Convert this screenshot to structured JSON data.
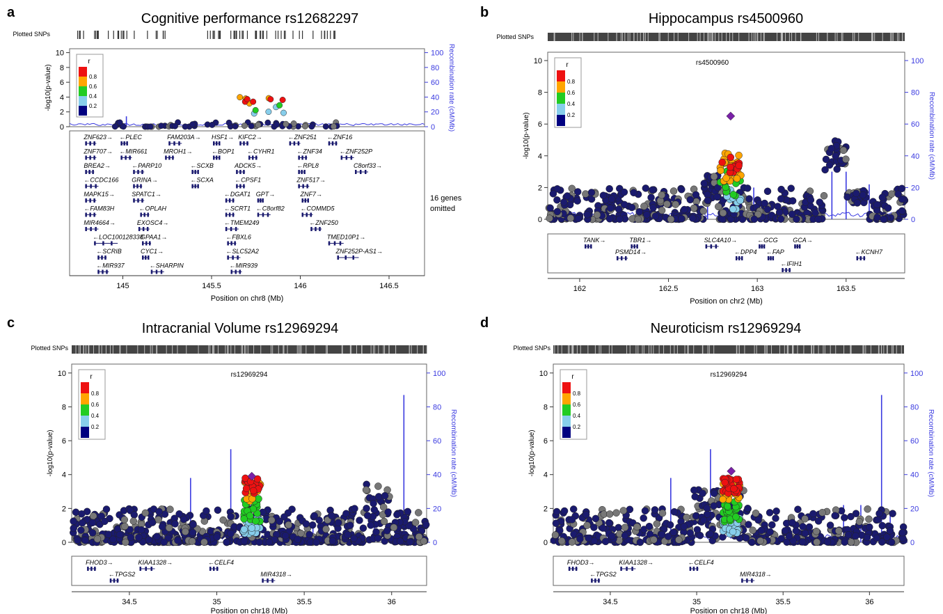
{
  "colors": {
    "recomb": "#3a3ae0",
    "snp_default": "#1a1a6e",
    "snp_gray": "#777777",
    "r2_bins": [
      "#000080",
      "#87ceeb",
      "#22cc22",
      "#ffa500",
      "#ee1111"
    ],
    "lead": "#7a20a8",
    "gene": "#1a1a6e"
  },
  "panels": [
    {
      "letter": "a",
      "title": "Cognitive performance rs12682297",
      "plotted_snps_label": "Plotted SNPs",
      "chart_data": {
        "type": "scatter",
        "title": "Cognitive performance rs12682297",
        "xlabel": "Position on chr8 (Mb)",
        "ylabel": "-log10(p-value)",
        "ylabel_right": "Recombination rate (cM/Mb)",
        "xlim": [
          144.7,
          146.7
        ],
        "ylim": [
          0,
          10
        ],
        "y2lim": [
          0,
          100
        ],
        "xticks": [
          145,
          145.5,
          146,
          146.5
        ],
        "xtick_labels": [
          "145",
          "145.5",
          "146",
          "146.5"
        ],
        "yticks": [
          0,
          2,
          4,
          6,
          8,
          10
        ],
        "y2ticks": [
          0,
          20,
          40,
          60,
          80,
          100
        ],
        "legend": {
          "title": "r",
          "labels": [
            "0.8",
            "0.6",
            "0.4",
            "0.2"
          ]
        },
        "lead_snp_label": "",
        "snp_bin_counts": [
          60,
          4,
          2,
          4,
          5
        ],
        "snp_x_range": [
          144.95,
          146.3
        ],
        "recomb_peaks": [
          [
            145.02,
            14
          ],
          [
            145.48,
            6
          ],
          [
            145.95,
            4
          ],
          [
            146.08,
            3
          ]
        ],
        "genes": [
          {
            "name": "ZNF623",
            "x": 144.78,
            "row": 0,
            "dir": "+"
          },
          {
            "name": "PLEC",
            "x": 144.98,
            "row": 0,
            "dir": "-"
          },
          {
            "name": "FAM203A",
            "x": 145.25,
            "row": 0,
            "dir": "+"
          },
          {
            "name": "HSF1",
            "x": 145.5,
            "row": 0,
            "dir": "+"
          },
          {
            "name": "KIFC2",
            "x": 145.65,
            "row": 0,
            "dir": "+"
          },
          {
            "name": "ZNF251",
            "x": 145.93,
            "row": 0,
            "dir": "-"
          },
          {
            "name": "ZNF16",
            "x": 146.15,
            "row": 0,
            "dir": "-"
          },
          {
            "name": "ZNF707",
            "x": 144.78,
            "row": 1,
            "dir": "+"
          },
          {
            "name": "MIR661",
            "x": 144.98,
            "row": 1,
            "dir": "-"
          },
          {
            "name": "MROH1",
            "x": 145.23,
            "row": 1,
            "dir": "+"
          },
          {
            "name": "BOP1",
            "x": 145.5,
            "row": 1,
            "dir": "-"
          },
          {
            "name": "CYHR1",
            "x": 145.7,
            "row": 1,
            "dir": "-"
          },
          {
            "name": "ZNF34",
            "x": 145.98,
            "row": 1,
            "dir": "-"
          },
          {
            "name": "ZNF252P",
            "x": 146.22,
            "row": 1,
            "dir": "-"
          },
          {
            "name": "BREA2",
            "x": 144.78,
            "row": 2,
            "dir": "+"
          },
          {
            "name": "PARP10",
            "x": 145.05,
            "row": 2,
            "dir": "-"
          },
          {
            "name": "SCXB",
            "x": 145.38,
            "row": 2,
            "dir": "-"
          },
          {
            "name": "ADCK5",
            "x": 145.63,
            "row": 2,
            "dir": "+"
          },
          {
            "name": "RPL8",
            "x": 145.98,
            "row": 2,
            "dir": "-"
          },
          {
            "name": "C8orf33",
            "x": 146.3,
            "row": 2,
            "dir": "+"
          },
          {
            "name": "CCDC166",
            "x": 144.78,
            "row": 3,
            "dir": "-"
          },
          {
            "name": "GRINA",
            "x": 145.05,
            "row": 3,
            "dir": "+"
          },
          {
            "name": "SCXA",
            "x": 145.38,
            "row": 3,
            "dir": "-"
          },
          {
            "name": "CPSF1",
            "x": 145.63,
            "row": 3,
            "dir": "-"
          },
          {
            "name": "ZNF517",
            "x": 145.98,
            "row": 3,
            "dir": "+"
          },
          {
            "name": "MAPK15",
            "x": 144.78,
            "row": 4,
            "dir": "+"
          },
          {
            "name": "SPATC1",
            "x": 145.05,
            "row": 4,
            "dir": "+"
          },
          {
            "name": "DGAT1",
            "x": 145.57,
            "row": 4,
            "dir": "-"
          },
          {
            "name": "GPT",
            "x": 145.75,
            "row": 4,
            "dir": "+"
          },
          {
            "name": "ZNF7",
            "x": 146.0,
            "row": 4,
            "dir": "+"
          },
          {
            "name": "FAM83H",
            "x": 144.78,
            "row": 5,
            "dir": "-"
          },
          {
            "name": "OPLAH",
            "x": 145.09,
            "row": 5,
            "dir": "-"
          },
          {
            "name": "SCRT1",
            "x": 145.57,
            "row": 5,
            "dir": "-"
          },
          {
            "name": "C8orf82",
            "x": 145.75,
            "row": 5,
            "dir": "-"
          },
          {
            "name": "COMMD5",
            "x": 146.0,
            "row": 5,
            "dir": "-"
          },
          {
            "name": "MIR4664",
            "x": 144.78,
            "row": 6,
            "dir": "+"
          },
          {
            "name": "EXOSC4",
            "x": 145.08,
            "row": 6,
            "dir": "+"
          },
          {
            "name": "TMEM249",
            "x": 145.57,
            "row": 6,
            "dir": "-"
          },
          {
            "name": "ZNF250",
            "x": 146.05,
            "row": 6,
            "dir": "-"
          },
          {
            "name": "LOC100128338",
            "x": 144.83,
            "row": 7,
            "dir": "-"
          },
          {
            "name": "GPAA1",
            "x": 145.1,
            "row": 7,
            "dir": "+"
          },
          {
            "name": "FBXL6",
            "x": 145.58,
            "row": 7,
            "dir": "-"
          },
          {
            "name": "TMED10P1",
            "x": 146.15,
            "row": 7,
            "dir": "+"
          },
          {
            "name": "SCRIB",
            "x": 144.85,
            "row": 8,
            "dir": "-"
          },
          {
            "name": "CYC1",
            "x": 145.1,
            "row": 8,
            "dir": "+"
          },
          {
            "name": "SLC52A2",
            "x": 145.58,
            "row": 8,
            "dir": "-"
          },
          {
            "name": "ZNF252P-AS1",
            "x": 146.2,
            "row": 8,
            "dir": "+"
          },
          {
            "name": "MIR937",
            "x": 144.85,
            "row": 9,
            "dir": "-"
          },
          {
            "name": "SHARPIN",
            "x": 145.15,
            "row": 9,
            "dir": "-"
          },
          {
            "name": "MIR939",
            "x": 145.6,
            "row": 9,
            "dir": "-"
          }
        ],
        "omitted_note": [
          "16 genes",
          "omitted"
        ]
      }
    },
    {
      "letter": "b",
      "title": "Hippocampus rs4500960",
      "plotted_snps_label": "Plotted SNPs",
      "chart_data": {
        "type": "scatter",
        "title": "Hippocampus rs4500960",
        "xlabel": "Position on chr2 (Mb)",
        "ylabel": "-log10(p-value)",
        "ylabel_right": "Recombination rate (cM/Mb)",
        "xlim": [
          161.82,
          163.83
        ],
        "ylim": [
          0,
          10
        ],
        "y2lim": [
          0,
          100
        ],
        "xticks": [
          162,
          162.5,
          163,
          163.5
        ],
        "xtick_labels": [
          "162",
          "162.5",
          "163",
          "163.5"
        ],
        "yticks": [
          0,
          2,
          4,
          6,
          8,
          10
        ],
        "y2ticks": [
          0,
          20,
          40,
          60,
          80,
          100
        ],
        "legend": {
          "title": "r",
          "labels": [
            "0.8",
            "0.6",
            "0.4",
            "0.2"
          ]
        },
        "lead_snp_label": "rs4500960",
        "lead_snp": {
          "x": 162.85,
          "y": 6.5
        },
        "snp_bin_counts": [
          540,
          10,
          14,
          22,
          12
        ],
        "snp_x_range": [
          161.82,
          163.83
        ],
        "recomb_peaks": [
          [
            162.72,
            20
          ],
          [
            162.98,
            20
          ],
          [
            163.42,
            30
          ],
          [
            163.5,
            30
          ],
          [
            163.63,
            22
          ]
        ],
        "genes": [
          {
            "name": "TANK",
            "x": 162.02,
            "row": 0,
            "dir": "+"
          },
          {
            "name": "TBR1",
            "x": 162.28,
            "row": 0,
            "dir": "+"
          },
          {
            "name": "SLC4A10",
            "x": 162.7,
            "row": 0,
            "dir": "+"
          },
          {
            "name": "GCG",
            "x": 163.0,
            "row": 0,
            "dir": "-"
          },
          {
            "name": "GCA",
            "x": 163.2,
            "row": 0,
            "dir": "+"
          },
          {
            "name": "PSMD14",
            "x": 162.2,
            "row": 1,
            "dir": "+"
          },
          {
            "name": "DPP4",
            "x": 162.87,
            "row": 1,
            "dir": "-"
          },
          {
            "name": "FAP",
            "x": 163.05,
            "row": 1,
            "dir": "-"
          },
          {
            "name": "KCNH7",
            "x": 163.55,
            "row": 1,
            "dir": "-"
          },
          {
            "name": "IFIH1",
            "x": 163.13,
            "row": 2,
            "dir": "-"
          }
        ],
        "omitted_note": []
      }
    },
    {
      "letter": "c",
      "title": "Intracranial Volume rs12969294",
      "plotted_snps_label": "Plotted SNPs",
      "chart_data": {
        "type": "scatter",
        "title": "Intracranial Volume rs12969294",
        "xlabel": "Position on chr18 (Mb)",
        "ylabel": "-log10(p-value)",
        "ylabel_right": "Recombination rate (cM/Mb)",
        "xlim": [
          34.17,
          36.2
        ],
        "ylim": [
          0,
          10
        ],
        "y2lim": [
          0,
          100
        ],
        "xticks": [
          34.5,
          35,
          35.5,
          36
        ],
        "xtick_labels": [
          "34.5",
          "35",
          "35.5",
          "36"
        ],
        "yticks": [
          0,
          2,
          4,
          6,
          8,
          10
        ],
        "y2ticks": [
          0,
          20,
          40,
          60,
          80,
          100
        ],
        "legend": {
          "title": "r",
          "labels": [
            "0.8",
            "0.6",
            "0.4",
            "0.2"
          ]
        },
        "lead_snp_label": "rs12969294",
        "lead_snp": {
          "x": 35.2,
          "y": 3.9
        },
        "snp_bin_counts": [
          640,
          26,
          22,
          16,
          18
        ],
        "snp_x_range": [
          34.17,
          36.2
        ],
        "recomb_peaks": [
          [
            34.85,
            38
          ],
          [
            35.08,
            55
          ],
          [
            36.07,
            87
          ],
          [
            34.6,
            8
          ],
          [
            35.55,
            12
          ],
          [
            35.9,
            20
          ]
        ],
        "genes": [
          {
            "name": "FHOD3",
            "x": 34.25,
            "row": 0,
            "dir": "+"
          },
          {
            "name": "KIAA1328",
            "x": 34.55,
            "row": 0,
            "dir": "+"
          },
          {
            "name": "CELF4",
            "x": 34.95,
            "row": 0,
            "dir": "-"
          },
          {
            "name": "TPGS2",
            "x": 34.38,
            "row": 1,
            "dir": "-"
          },
          {
            "name": "MIR4318",
            "x": 35.25,
            "row": 1,
            "dir": "+"
          }
        ],
        "omitted_note": []
      }
    },
    {
      "letter": "d",
      "title": "Neuroticism rs12969294",
      "plotted_snps_label": "Plotted SNPs",
      "chart_data": {
        "type": "scatter",
        "title": "Neuroticism rs12969294",
        "xlabel": "Position on chr18 (Mb)",
        "ylabel": "-log10(p-value)",
        "ylabel_right": "Recombination rate (cM/Mb)",
        "xlim": [
          34.17,
          36.2
        ],
        "ylim": [
          0,
          10
        ],
        "y2lim": [
          0,
          100
        ],
        "xticks": [
          34.5,
          35,
          35.5,
          36
        ],
        "xtick_labels": [
          "34.5",
          "35",
          "35.5",
          "36"
        ],
        "yticks": [
          0,
          2,
          4,
          6,
          8,
          10
        ],
        "y2ticks": [
          0,
          20,
          40,
          60,
          80,
          100
        ],
        "legend": {
          "title": "r",
          "labels": [
            "0.8",
            "0.6",
            "0.4",
            "0.2"
          ]
        },
        "lead_snp_label": "rs12969294",
        "lead_snp": {
          "x": 35.2,
          "y": 4.2
        },
        "snp_bin_counts": [
          520,
          40,
          30,
          26,
          30
        ],
        "snp_x_range": [
          34.17,
          36.2
        ],
        "recomb_peaks": [
          [
            34.85,
            38
          ],
          [
            35.08,
            55
          ],
          [
            36.07,
            87
          ],
          [
            35.85,
            22
          ],
          [
            35.95,
            22
          ],
          [
            36.12,
            18
          ]
        ],
        "genes": [
          {
            "name": "FHOD3",
            "x": 34.25,
            "row": 0,
            "dir": "+"
          },
          {
            "name": "KIAA1328",
            "x": 34.55,
            "row": 0,
            "dir": "+"
          },
          {
            "name": "CELF4",
            "x": 34.95,
            "row": 0,
            "dir": "-"
          },
          {
            "name": "TPGS2",
            "x": 34.38,
            "row": 1,
            "dir": "-"
          },
          {
            "name": "MIR4318",
            "x": 35.25,
            "row": 1,
            "dir": "+"
          }
        ],
        "omitted_note": []
      }
    }
  ]
}
